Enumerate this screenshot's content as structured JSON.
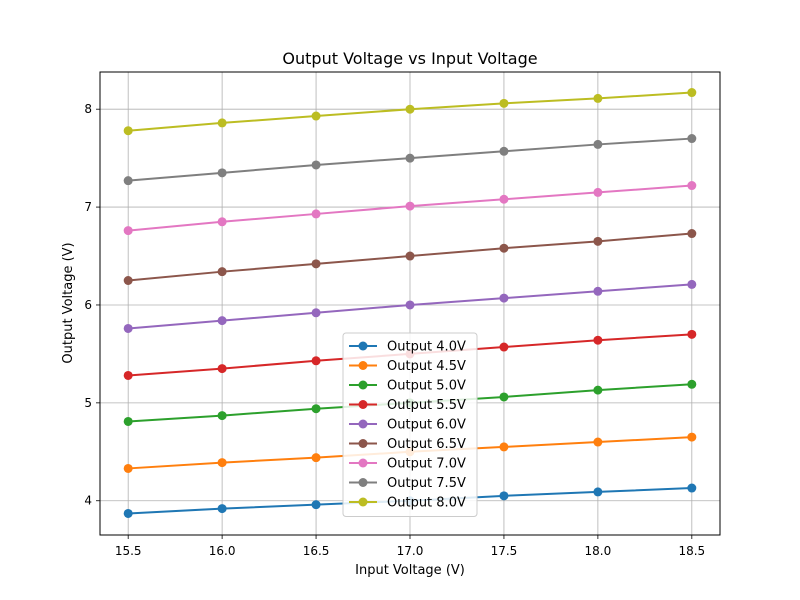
{
  "chart_data": {
    "type": "line",
    "title": "Output Voltage vs Input Voltage",
    "xlabel": "Input Voltage (V)",
    "ylabel": "Output Voltage (V)",
    "x": [
      15.5,
      16.0,
      16.5,
      17.0,
      17.5,
      18.0,
      18.5
    ],
    "x_ticks": [
      "15.5",
      "16.0",
      "16.5",
      "17.0",
      "17.5",
      "18.0",
      "18.5"
    ],
    "y_ticks": [
      "4",
      "5",
      "6",
      "7",
      "8"
    ],
    "xlim": [
      15.35,
      18.65
    ],
    "ylim": [
      3.65,
      8.38
    ],
    "grid": true,
    "legend_position": "lower-center",
    "series": [
      {
        "name": "Output 4.0V",
        "color": "#1f77b4",
        "values": [
          3.87,
          3.92,
          3.96,
          4.0,
          4.05,
          4.09,
          4.13
        ]
      },
      {
        "name": "Output 4.5V",
        "color": "#ff7f0e",
        "values": [
          4.33,
          4.39,
          4.44,
          4.5,
          4.55,
          4.6,
          4.65
        ]
      },
      {
        "name": "Output 5.0V",
        "color": "#2ca02c",
        "values": [
          4.81,
          4.87,
          4.94,
          5.0,
          5.06,
          5.13,
          5.19
        ]
      },
      {
        "name": "Output 5.5V",
        "color": "#d62728",
        "values": [
          5.28,
          5.35,
          5.43,
          5.5,
          5.57,
          5.64,
          5.7
        ]
      },
      {
        "name": "Output 6.0V",
        "color": "#9467bd",
        "values": [
          5.76,
          5.84,
          5.92,
          6.0,
          6.07,
          6.14,
          6.21
        ]
      },
      {
        "name": "Output 6.5V",
        "color": "#8c564b",
        "values": [
          6.25,
          6.34,
          6.42,
          6.5,
          6.58,
          6.65,
          6.73
        ]
      },
      {
        "name": "Output 7.0V",
        "color": "#e377c2",
        "values": [
          6.76,
          6.85,
          6.93,
          7.01,
          7.08,
          7.15,
          7.22
        ]
      },
      {
        "name": "Output 7.5V",
        "color": "#7f7f7f",
        "values": [
          7.27,
          7.35,
          7.43,
          7.5,
          7.57,
          7.64,
          7.7
        ]
      },
      {
        "name": "Output 8.0V",
        "color": "#bcbd22",
        "values": [
          7.78,
          7.86,
          7.93,
          8.0,
          8.06,
          8.11,
          8.17
        ]
      }
    ]
  }
}
